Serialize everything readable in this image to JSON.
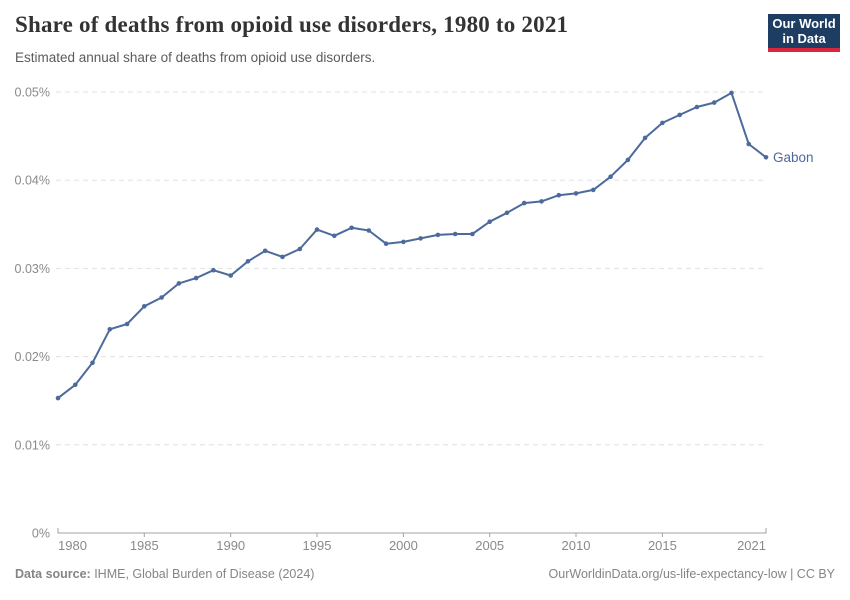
{
  "header": {
    "title": "Share of deaths from opioid use disorders, 1980 to 2021",
    "subtitle": "Estimated annual share of deaths from opioid use disorders.",
    "logo": {
      "line1": "Our World",
      "line2": "in Data"
    }
  },
  "footer": {
    "source_label": "Data source:",
    "source_value": " IHME, Global Burden of Disease (2024)",
    "credit": "OurWorldinData.org/us-life-expectancy-low | CC BY"
  },
  "colors": {
    "line": "#4c6a9c",
    "logo_bg": "#1d3d63",
    "logo_accent": "#d7263d",
    "axis": "#a3a3a3",
    "gridline": "#e0e0e0",
    "tick_label": "#8a8a8a"
  },
  "chart_data": {
    "type": "line",
    "title": "Share of deaths from opioid use disorders, 1980 to 2021",
    "subtitle": "Estimated annual share of deaths from opioid use disorders.",
    "unit": "%",
    "xlim": [
      1980,
      2021
    ],
    "ylim": [
      0,
      0.05
    ],
    "grid": true,
    "legend": "end-of-line-label",
    "x_ticks": [
      {
        "value": 1980,
        "label": "1980"
      },
      {
        "value": 1985,
        "label": "1985"
      },
      {
        "value": 1990,
        "label": "1990"
      },
      {
        "value": 1995,
        "label": "1995"
      },
      {
        "value": 2000,
        "label": "2000"
      },
      {
        "value": 2005,
        "label": "2005"
      },
      {
        "value": 2010,
        "label": "2010"
      },
      {
        "value": 2015,
        "label": "2015"
      },
      {
        "value": 2021,
        "label": "2021"
      }
    ],
    "y_ticks": [
      {
        "value": 0,
        "label": "0%"
      },
      {
        "value": 0.01,
        "label": "0.01%"
      },
      {
        "value": 0.02,
        "label": "0.02%"
      },
      {
        "value": 0.03,
        "label": "0.03%"
      },
      {
        "value": 0.04,
        "label": "0.04%"
      },
      {
        "value": 0.05,
        "label": "0.05%"
      }
    ],
    "series": [
      {
        "name": "Gabon",
        "color": "#4c6a9c",
        "x": [
          1980,
          1981,
          1982,
          1983,
          1984,
          1985,
          1986,
          1987,
          1988,
          1989,
          1990,
          1991,
          1992,
          1993,
          1994,
          1995,
          1996,
          1997,
          1998,
          1999,
          2000,
          2001,
          2002,
          2003,
          2004,
          2005,
          2006,
          2007,
          2008,
          2009,
          2010,
          2011,
          2012,
          2013,
          2014,
          2015,
          2016,
          2017,
          2018,
          2019,
          2020,
          2021
        ],
        "values": [
          0.0153,
          0.0168,
          0.0193,
          0.0231,
          0.0237,
          0.0257,
          0.0267,
          0.0283,
          0.0289,
          0.0298,
          0.0292,
          0.0308,
          0.032,
          0.0313,
          0.0322,
          0.0344,
          0.0337,
          0.0346,
          0.0343,
          0.0328,
          0.033,
          0.0334,
          0.0338,
          0.0339,
          0.0339,
          0.0353,
          0.0363,
          0.0374,
          0.0376,
          0.0383,
          0.0385,
          0.0389,
          0.0404,
          0.0423,
          0.0448,
          0.0465,
          0.0474,
          0.0483,
          0.0488,
          0.0499,
          0.0441,
          0.0426
        ]
      }
    ]
  }
}
